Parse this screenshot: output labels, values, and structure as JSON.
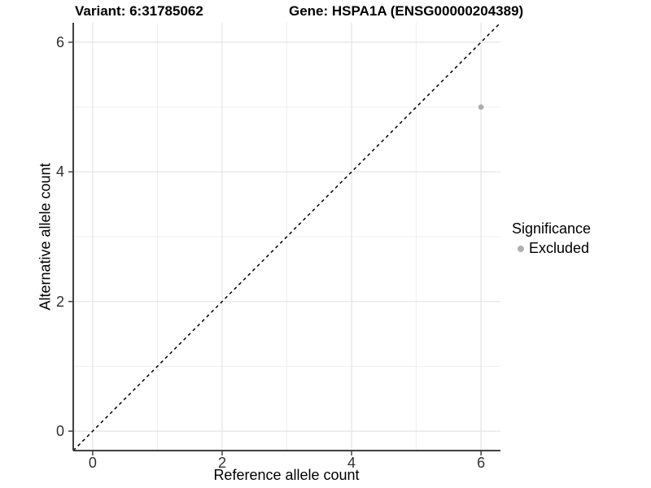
{
  "titles": {
    "variant": "Variant: 6:31785062",
    "gene": "Gene: HSPA1A (ENSG00000204389)"
  },
  "legend": {
    "title": "Significance",
    "items": [
      {
        "label": "Excluded",
        "color": "#b0b0b0"
      }
    ]
  },
  "chart_data": {
    "type": "scatter",
    "title": "Variant: 6:31785062  /  Gene: HSPA1A (ENSG00000204389)",
    "xlabel": "Reference allele count",
    "ylabel": "Alternative allele count",
    "xlim": [
      -0.3,
      6.3
    ],
    "ylim": [
      -0.3,
      6.3
    ],
    "x_ticks": [
      0,
      2,
      4,
      6
    ],
    "y_ticks": [
      0,
      2,
      4,
      6
    ],
    "minor_gridlines": [
      1,
      3,
      5
    ],
    "grid": true,
    "legend_position": "right",
    "series": [
      {
        "name": "Excluded",
        "color": "#aeaeae",
        "points": [
          [
            6,
            5
          ]
        ],
        "point_radius": 3.4
      }
    ],
    "reference_line": {
      "kind": "identity",
      "style": "dashed",
      "color": "#000000"
    }
  },
  "style": {
    "major_grid": "#e4e4e4",
    "minor_grid": "#f0f0f0",
    "axis_line": "#404040",
    "tick_color": "#404040"
  }
}
